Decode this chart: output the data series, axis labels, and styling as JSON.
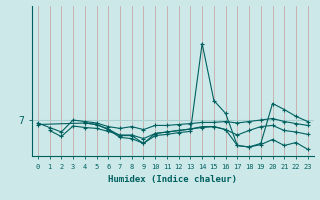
{
  "xlabel": "Humidex (Indice chaleur)",
  "xlim": [
    -0.5,
    23.5
  ],
  "ylim": [
    5.8,
    10.8
  ],
  "ytick_val": 7,
  "ytick_label": "7",
  "xticks": [
    0,
    1,
    2,
    3,
    4,
    5,
    6,
    7,
    8,
    9,
    10,
    11,
    12,
    13,
    14,
    15,
    16,
    17,
    18,
    19,
    20,
    21,
    22,
    23
  ],
  "bg_color": "#cce8e8",
  "vgrid_color": "#c8a8a8",
  "hgrid_color": "#a8d0d0",
  "line_color": "#006060",
  "lines": [
    {
      "x": [
        0,
        1,
        2,
        3,
        4,
        5,
        6,
        7,
        8,
        9,
        10,
        11,
        12,
        13,
        14,
        15,
        16,
        17,
        18,
        19,
        20,
        21,
        22,
        23
      ],
      "y": [
        6.9,
        6.75,
        6.6,
        7.0,
        6.95,
        6.9,
        6.78,
        6.72,
        6.78,
        6.68,
        6.82,
        6.82,
        6.85,
        6.88,
        6.92,
        6.92,
        6.95,
        6.9,
        6.95,
        7.0,
        7.05,
        6.95,
        6.88,
        6.82
      ]
    },
    {
      "x": [
        1,
        2,
        3,
        4,
        5,
        6,
        7,
        8,
        9,
        10,
        11,
        12,
        13,
        14,
        15,
        16,
        17,
        18,
        19,
        20,
        21,
        22,
        23
      ],
      "y": [
        6.65,
        6.45,
        6.8,
        6.75,
        6.72,
        6.62,
        6.5,
        6.5,
        6.38,
        6.55,
        6.6,
        6.65,
        6.7,
        6.75,
        6.78,
        6.68,
        6.5,
        6.65,
        6.78,
        6.82,
        6.65,
        6.6,
        6.52
      ]
    },
    {
      "x": [
        0,
        4,
        5,
        6,
        7,
        8,
        9,
        10,
        11,
        12,
        13,
        14,
        15,
        16,
        17,
        18,
        19,
        20,
        21,
        22,
        23
      ],
      "y": [
        6.85,
        6.9,
        6.85,
        6.68,
        6.42,
        6.38,
        6.22,
        6.48,
        6.52,
        6.58,
        6.62,
        9.55,
        7.65,
        7.22,
        6.15,
        6.1,
        6.22,
        7.55,
        7.35,
        7.12,
        6.95
      ]
    },
    {
      "x": [
        4,
        5,
        6,
        7,
        8,
        9,
        10,
        11,
        12,
        13,
        14,
        15,
        16,
        17,
        18,
        19,
        20,
        21,
        22,
        23
      ],
      "y": [
        6.9,
        6.85,
        6.7,
        6.48,
        6.48,
        6.22,
        6.55,
        6.6,
        6.65,
        6.7,
        6.78,
        6.78,
        6.68,
        6.15,
        6.1,
        6.18,
        6.35,
        6.15,
        6.25,
        6.02
      ]
    }
  ]
}
